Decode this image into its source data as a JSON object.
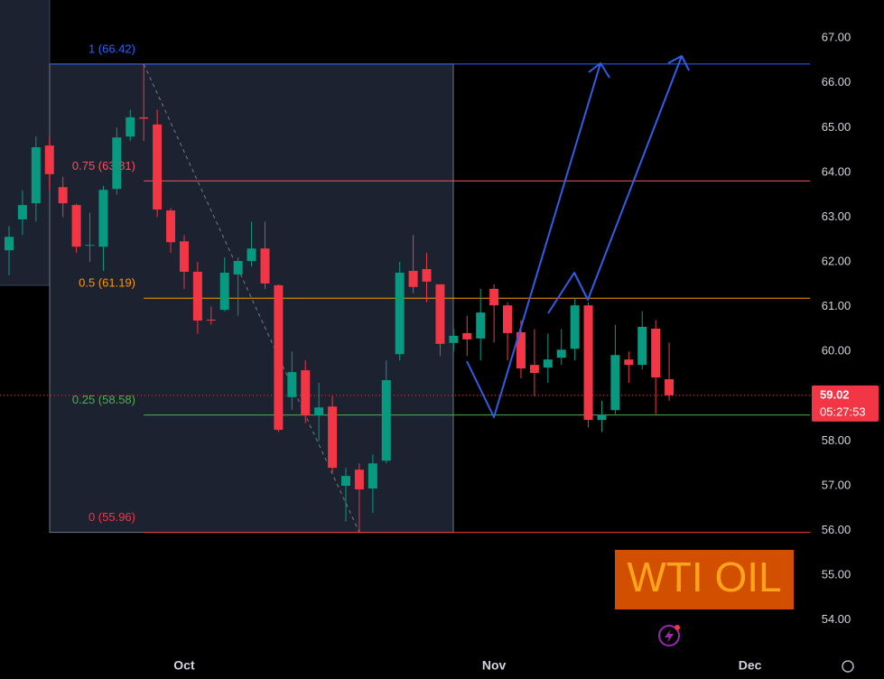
{
  "chart_data": {
    "type": "candlestick",
    "categories": [
      null,
      null,
      null,
      null,
      null,
      null,
      null,
      null,
      null,
      null,
      null,
      null,
      null,
      "Oct",
      null,
      null,
      null,
      null,
      null,
      null,
      null,
      null,
      null,
      null,
      null,
      null,
      null,
      null,
      null,
      null,
      null,
      null,
      null,
      null,
      null,
      null,
      "Nov",
      null,
      null,
      null,
      null,
      null,
      null,
      null,
      null,
      null,
      null,
      null,
      null,
      null,
      null,
      null,
      null,
      null,
      null,
      "Dec",
      null,
      null,
      null,
      null
    ],
    "open": [
      62.26,
      62.95,
      63.31,
      64.6,
      63.67,
      63.27,
      62.36,
      62.34,
      63.63,
      64.8,
      65.23,
      65.07,
      63.15,
      62.46,
      61.78,
      60.71,
      60.93,
      61.72,
      62.02,
      62.3,
      61.48,
      58.98,
      59.58,
      58.57,
      58.77,
      57.0,
      57.36,
      56.94,
      57.56,
      59.94,
      61.8,
      61.84,
      61.5,
      60.19,
      60.41,
      60.29,
      61.4,
      61.03,
      60.43,
      59.7,
      59.64,
      59.86,
      60.06,
      61.03,
      58.47,
      58.69,
      59.82,
      59.7,
      60.51,
      59.38,
      null,
      null,
      null,
      null,
      null,
      null,
      null,
      null,
      null,
      null
    ],
    "high": [
      62.8,
      63.6,
      64.8,
      64.8,
      63.9,
      63.3,
      63.1,
      63.7,
      65.0,
      65.4,
      66.42,
      65.4,
      63.2,
      62.6,
      62.0,
      61.0,
      62.1,
      62.1,
      62.9,
      62.9,
      61.5,
      60.0,
      59.8,
      59.3,
      59.0,
      57.4,
      57.5,
      57.7,
      59.8,
      62.0,
      62.6,
      62.2,
      61.5,
      60.5,
      60.8,
      61.4,
      61.5,
      61.1,
      60.7,
      60.5,
      60.4,
      60.5,
      61.2,
      61.1,
      58.9,
      60.6,
      60.0,
      60.9,
      60.7,
      60.2,
      null,
      null,
      null,
      null,
      null,
      null,
      null,
      null,
      null,
      null
    ],
    "low": [
      61.7,
      62.6,
      62.9,
      63.6,
      63.0,
      62.2,
      62.0,
      61.8,
      63.5,
      64.7,
      64.7,
      63.0,
      62.2,
      61.4,
      60.4,
      60.6,
      60.9,
      60.8,
      61.9,
      61.4,
      58.2,
      58.7,
      58.4,
      58.0,
      57.3,
      56.2,
      55.96,
      56.4,
      57.5,
      59.8,
      61.3,
      61.1,
      59.9,
      60.0,
      59.9,
      59.8,
      60.2,
      59.8,
      59.4,
      59.0,
      59.3,
      59.7,
      59.8,
      58.3,
      58.2,
      58.6,
      59.3,
      59.6,
      58.6,
      58.9,
      null,
      null,
      null,
      null,
      null,
      null,
      null,
      null,
      null,
      null
    ],
    "close": [
      62.56,
      63.27,
      64.56,
      63.96,
      63.31,
      62.34,
      62.38,
      63.61,
      64.78,
      65.23,
      65.2,
      63.17,
      62.44,
      61.78,
      60.69,
      60.69,
      61.76,
      62.02,
      62.3,
      61.52,
      58.25,
      59.54,
      58.57,
      58.75,
      57.4,
      57.22,
      56.92,
      57.5,
      59.36,
      61.76,
      61.44,
      61.56,
      60.17,
      60.35,
      60.27,
      60.87,
      61.03,
      60.41,
      59.62,
      59.52,
      59.82,
      60.04,
      61.03,
      58.47,
      58.59,
      59.92,
      59.7,
      60.55,
      59.42,
      59.02,
      null,
      null,
      null,
      null,
      null,
      null,
      null,
      null,
      null,
      null
    ],
    "up_color": "#089981",
    "down_color": "#f23645",
    "ylim": [
      53.33,
      67.85
    ],
    "yticks": [
      {
        "value": 54,
        "label": "54.00"
      },
      {
        "value": 55,
        "label": "55.00"
      },
      {
        "value": 56,
        "label": "56.00"
      },
      {
        "value": 57,
        "label": "57.00"
      },
      {
        "value": 58,
        "label": "58.00"
      },
      {
        "value": 59,
        "label": "59.00"
      },
      {
        "value": 60,
        "label": "60.00"
      },
      {
        "value": 61,
        "label": "61.00"
      },
      {
        "value": 62,
        "label": "62.00"
      },
      {
        "value": 63,
        "label": "63.00"
      },
      {
        "value": 64,
        "label": "64.00"
      },
      {
        "value": 65,
        "label": "65.00"
      },
      {
        "value": 66,
        "label": "66.00"
      },
      {
        "value": 67,
        "label": "67.00"
      }
    ],
    "fib_levels": [
      {
        "label": "1 (66.42)",
        "value": 66.42,
        "color": "#2962ff"
      },
      {
        "label": "0.75 (63.81)",
        "value": 63.81,
        "color": "#f7525f"
      },
      {
        "label": "0.5 (61.19)",
        "value": 61.19,
        "color": "#ff9800"
      },
      {
        "label": "0.25 (58.58)",
        "value": 58.58,
        "color": "#4caf50"
      },
      {
        "label": "0 (55.96)",
        "value": 55.96,
        "color": "#f23645"
      }
    ],
    "last_price": 59.02,
    "countdown": "05:27:53",
    "annotation": "WTI OIL"
  }
}
